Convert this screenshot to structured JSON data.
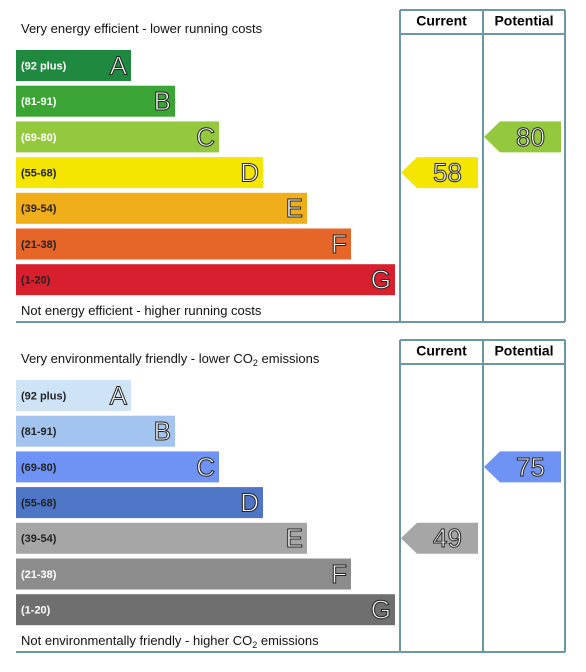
{
  "panels": [
    {
      "top_text": [
        "Very energy efficient - lower running costs"
      ],
      "bottom_text": [
        "Not energy efficient - higher running costs"
      ],
      "headers": [
        "Current",
        "Potential"
      ],
      "bands": [
        {
          "range": "(92 plus)",
          "letter": "A",
          "color": "#1f8a3f",
          "text_color": "#ffffff"
        },
        {
          "range": "(81-91)",
          "letter": "B",
          "color": "#3aa535",
          "text_color": "#ffffff"
        },
        {
          "range": "(69-80)",
          "letter": "C",
          "color": "#95c93d",
          "text_color": "#ffffff"
        },
        {
          "range": "(55-68)",
          "letter": "D",
          "color": "#f4e600",
          "text_color": "#222222"
        },
        {
          "range": "(39-54)",
          "letter": "E",
          "color": "#f0ae1a",
          "text_color": "#222222"
        },
        {
          "range": "(21-38)",
          "letter": "F",
          "color": "#e56628",
          "text_color": "#222222"
        },
        {
          "range": "(1-20)",
          "letter": "G",
          "color": "#d81f2d",
          "text_color": "#222222"
        }
      ],
      "current": 58,
      "potential": 80
    },
    {
      "top_text": [
        "Very environmentally friendly - lower CO",
        "2",
        " emissions"
      ],
      "bottom_text": [
        "Not environmentally friendly - higher CO",
        "2",
        " emissions"
      ],
      "headers": [
        "Current",
        "Potential"
      ],
      "bands": [
        {
          "range": "(92 plus)",
          "letter": "A",
          "color": "#cfe3f6",
          "text_color": "#222222"
        },
        {
          "range": "(81-91)",
          "letter": "B",
          "color": "#a2c4ee",
          "text_color": "#222222"
        },
        {
          "range": "(69-80)",
          "letter": "C",
          "color": "#6f93f4",
          "text_color": "#222222"
        },
        {
          "range": "(55-68)",
          "letter": "D",
          "color": "#4e75c6",
          "text_color": "#222222"
        },
        {
          "range": "(39-54)",
          "letter": "E",
          "color": "#a6a6a6",
          "text_color": "#222222"
        },
        {
          "range": "(21-38)",
          "letter": "F",
          "color": "#8c8c8c",
          "text_color": "#ffffff"
        },
        {
          "range": "(1-20)",
          "letter": "G",
          "color": "#6f6f6f",
          "text_color": "#ffffff"
        }
      ],
      "current": 49,
      "potential": 75
    }
  ]
}
